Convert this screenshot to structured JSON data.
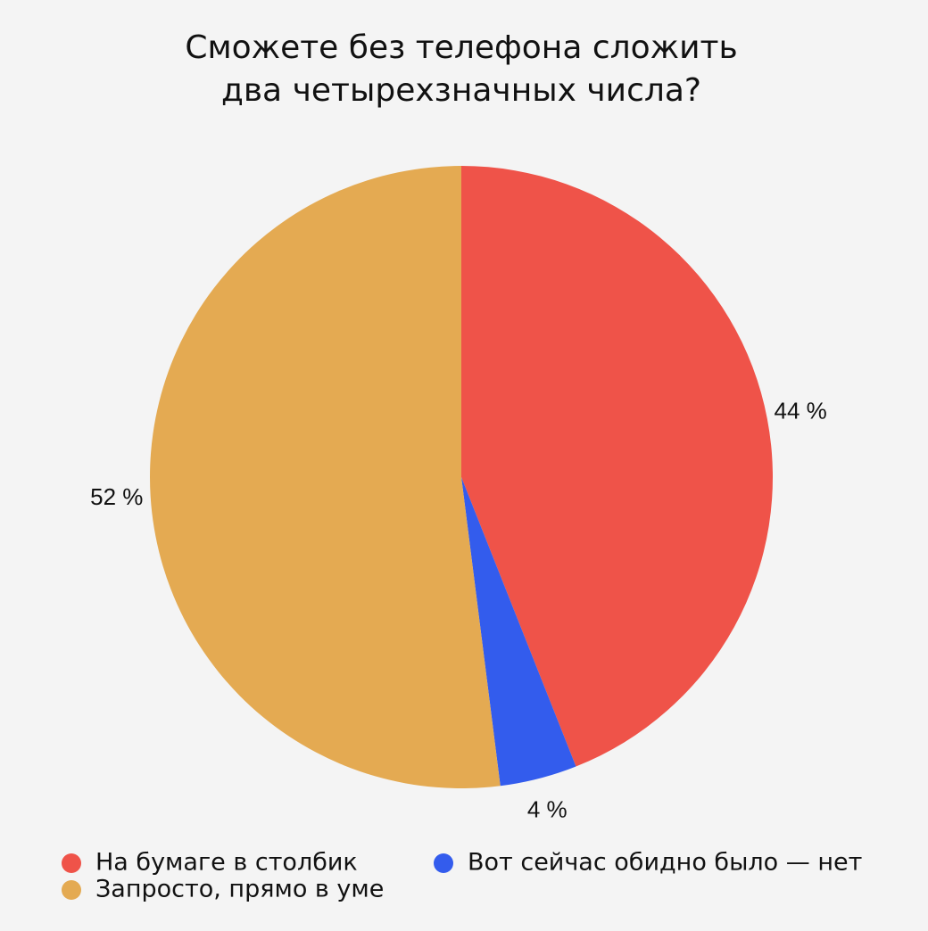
{
  "chart_data": {
    "type": "pie",
    "title": [
      "Сможете без телефона сложить",
      "два четырехзначных числа?"
    ],
    "categories": [
      "На бумаге в столбик",
      "Вот сейчас обидно было — нет",
      "Запросто, прямо в уме"
    ],
    "values": [
      44,
      4,
      52
    ],
    "value_labels": [
      "44 %",
      "4 %",
      "52 %"
    ],
    "colors": [
      "#ef5349",
      "#335ced",
      "#e4aa52"
    ]
  }
}
